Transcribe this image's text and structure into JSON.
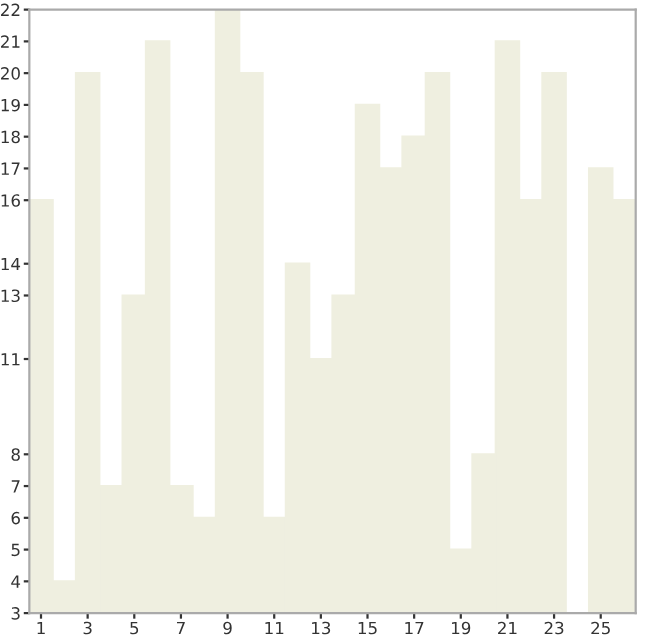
{
  "chart_data": {
    "type": "bar",
    "categories": [
      "1",
      null,
      "3",
      null,
      "5",
      null,
      "7",
      null,
      "9",
      null,
      "11",
      null,
      "13",
      null,
      "15",
      null,
      "17",
      null,
      "19",
      null,
      "21",
      null,
      "23",
      null,
      "25",
      null
    ],
    "values": [
      16,
      4,
      20,
      7,
      13,
      21,
      7,
      6,
      22,
      20,
      6,
      14,
      11,
      13,
      19,
      17,
      18,
      20,
      5,
      8,
      21,
      16,
      20,
      3,
      17,
      16
    ],
    "color": "#efefe0",
    "ylim": [
      3,
      22
    ],
    "yticks": [
      3,
      4,
      5,
      6,
      7,
      8,
      11,
      13,
      14,
      16,
      17,
      18,
      19,
      20,
      21,
      22
    ],
    "grid": false,
    "legend": false
  }
}
